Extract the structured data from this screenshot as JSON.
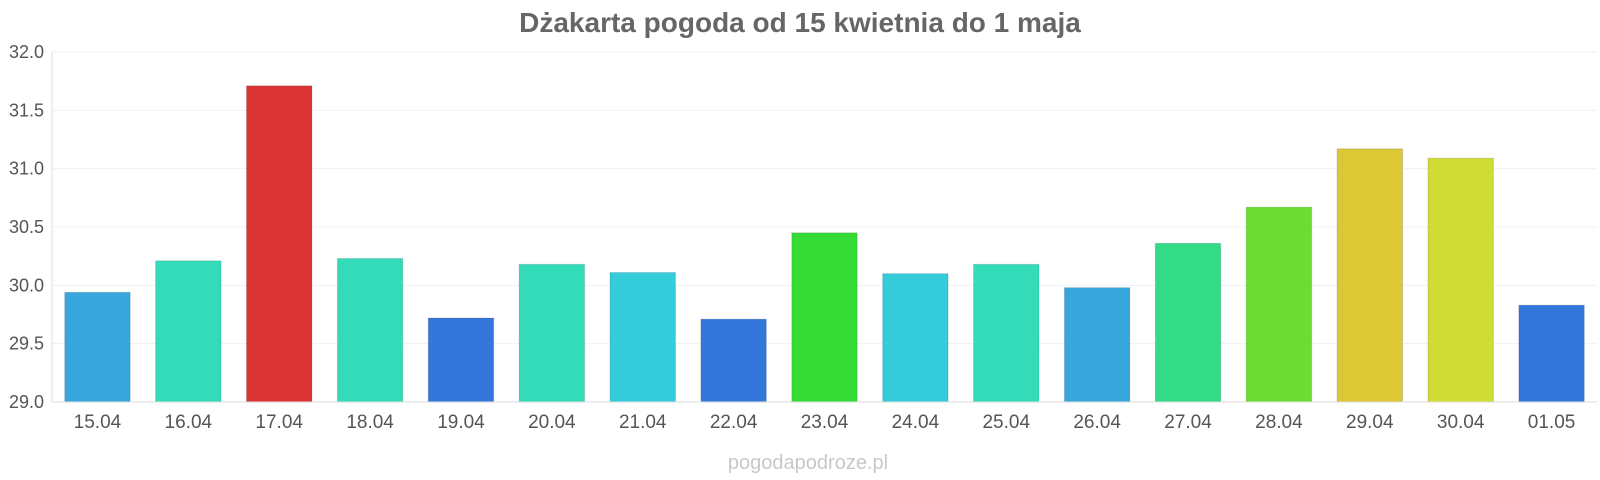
{
  "chart_data": {
    "type": "bar",
    "title": "Dżakarta pogoda od 15 kwietnia do 1 maja",
    "xlabel": "",
    "ylabel": "",
    "ylim": [
      29.0,
      32.0
    ],
    "yticks": [
      "29.0",
      "29.5",
      "30.0",
      "30.5",
      "31.0",
      "31.5",
      "32.0"
    ],
    "grid": true,
    "categories": [
      "15.04",
      "16.04",
      "17.04",
      "18.04",
      "19.04",
      "20.04",
      "21.04",
      "22.04",
      "23.04",
      "24.04",
      "25.04",
      "26.04",
      "27.04",
      "28.04",
      "29.04",
      "30.04",
      "01.05"
    ],
    "values": [
      29.94,
      30.21,
      31.71,
      30.23,
      29.72,
      30.18,
      30.11,
      29.71,
      30.45,
      30.1,
      30.18,
      29.98,
      30.36,
      30.67,
      31.17,
      31.09,
      29.83
    ],
    "colors": [
      "#36a6dc",
      "#34dbb8",
      "#db3434",
      "#34dbb8",
      "#3477db",
      "#34dbb8",
      "#34cbdb",
      "#3477db",
      "#36dc36",
      "#34cbdb",
      "#34dbb8",
      "#36a6dc",
      "#34db86",
      "#6ddb34",
      "#dbc834",
      "#cfdc34",
      "#3477db"
    ]
  },
  "watermark": "pogodapodroze.pl"
}
